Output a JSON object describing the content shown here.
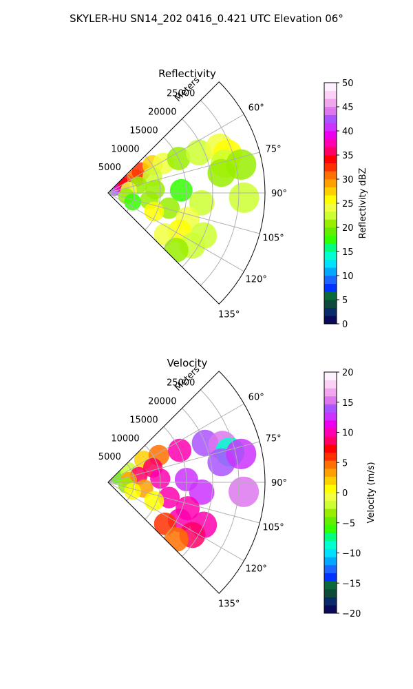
{
  "figure_title": "SKYLER-HU  SN14_202  0416_0.421 UTC Elevation 06°",
  "colors": {
    "ring_grid": "#b0b0b0",
    "frame": "#000000",
    "reflectivity_scale": [
      "#0a0a5a",
      "#0a2a6a",
      "#0d4a3a",
      "#0a6a3a",
      "#0033ff",
      "#1a66ff",
      "#00a8ff",
      "#00e0ff",
      "#00ffd0",
      "#00ff80",
      "#33ff00",
      "#66ee00",
      "#99ee00",
      "#ccff33",
      "#f0ff40",
      "#ffff00",
      "#ffd000",
      "#ffa000",
      "#ff7000",
      "#ff3000",
      "#ff0000",
      "#ff0066",
      "#ff00b0",
      "#ee00ee",
      "#cc33ff",
      "#aa55ff",
      "#dd77ee",
      "#f2a6ee",
      "#fad2f5",
      "#fff0ff"
    ],
    "velocity_scale": [
      "#0a0a5a",
      "#0a2a6a",
      "#0d4a3a",
      "#0a6a3a",
      "#0033ff",
      "#1a66ff",
      "#00a8ff",
      "#00e0ff",
      "#00ffd0",
      "#00ff80",
      "#33ff00",
      "#66ee00",
      "#99ee00",
      "#ccff33",
      "#f0ff40",
      "#ffff00",
      "#ffd000",
      "#ffa000",
      "#ff7000",
      "#ff3000",
      "#ff0000",
      "#ff0066",
      "#ff00b0",
      "#ee00ee",
      "#cc33ff",
      "#aa55ff",
      "#dd77ee",
      "#f2a6ee",
      "#fad2f5",
      "#fff0ff"
    ]
  },
  "chart_data": [
    {
      "type": "heatmap",
      "projection": "polar-sector",
      "title": "Reflectivity",
      "range_label": "Meters",
      "range_ticks": [
        5000,
        10000,
        15000,
        20000,
        25000
      ],
      "azimuth_range_deg": [
        45,
        135
      ],
      "azimuth_ticks": [
        "60°",
        "75°",
        "90°",
        "105°",
        "120°",
        "135°"
      ],
      "range_max_m": 30000,
      "colorbar": {
        "label": "Reflectivity dBZ",
        "range": [
          0,
          50
        ],
        "ticks": [
          "0",
          "5",
          "10",
          "15",
          "20",
          "25",
          "30",
          "35",
          "40",
          "45",
          "50"
        ]
      },
      "echo_cells": [
        {
          "az": 56,
          "r": 1500,
          "v": 42
        },
        {
          "az": 58,
          "r": 3000,
          "v": 38
        },
        {
          "az": 60,
          "r": 4000,
          "v": 34
        },
        {
          "az": 62,
          "r": 6000,
          "v": 30
        },
        {
          "az": 57,
          "r": 7500,
          "v": 32
        },
        {
          "az": 58,
          "r": 10000,
          "v": 28
        },
        {
          "az": 62,
          "r": 12000,
          "v": 24
        },
        {
          "az": 64,
          "r": 15000,
          "v": 20
        },
        {
          "az": 66,
          "r": 19000,
          "v": 22
        },
        {
          "az": 68,
          "r": 23000,
          "v": 24
        },
        {
          "az": 72,
          "r": 24000,
          "v": 26
        },
        {
          "az": 76,
          "r": 23000,
          "v": 22
        },
        {
          "az": 80,
          "r": 22000,
          "v": 20
        },
        {
          "az": 78,
          "r": 26000,
          "v": 20
        },
        {
          "az": 70,
          "r": 9000,
          "v": 22
        },
        {
          "az": 76,
          "r": 6000,
          "v": 20
        },
        {
          "az": 82,
          "r": 4000,
          "v": 24
        },
        {
          "az": 86,
          "r": 9000,
          "v": 20
        },
        {
          "az": 88,
          "r": 14000,
          "v": 18
        },
        {
          "az": 92,
          "r": 26000,
          "v": 22
        },
        {
          "az": 96,
          "r": 18000,
          "v": 22
        },
        {
          "az": 100,
          "r": 8000,
          "v": 20
        },
        {
          "az": 104,
          "r": 12000,
          "v": 20
        },
        {
          "az": 108,
          "r": 16000,
          "v": 24
        },
        {
          "az": 112,
          "r": 9500,
          "v": 26
        },
        {
          "az": 114,
          "r": 20000,
          "v": 22
        },
        {
          "az": 118,
          "r": 15500,
          "v": 26
        },
        {
          "az": 122,
          "r": 19000,
          "v": 22
        },
        {
          "az": 126,
          "r": 13500,
          "v": 24
        },
        {
          "az": 130,
          "r": 17000,
          "v": 20
        },
        {
          "az": 100,
          "r": 3500,
          "v": 20
        },
        {
          "az": 110,
          "r": 5000,
          "v": 18
        }
      ]
    },
    {
      "type": "heatmap",
      "projection": "polar-sector",
      "title": "Velocity",
      "range_label": "Meters",
      "range_ticks": [
        5000,
        10000,
        15000,
        20000,
        25000
      ],
      "azimuth_range_deg": [
        45,
        135
      ],
      "azimuth_ticks": [
        "60°",
        "75°",
        "90°",
        "105°",
        "120°",
        "135°"
      ],
      "range_max_m": 30000,
      "colorbar": {
        "label": "Velocity (m/s)",
        "range": [
          -20,
          20
        ],
        "ticks": [
          "−20",
          "−15",
          "−10",
          "−5",
          "0",
          "5",
          "10",
          "15",
          "20"
        ]
      },
      "echo_cells": [
        {
          "az": 56,
          "r": 2000,
          "v": -5
        },
        {
          "az": 60,
          "r": 4500,
          "v": -2
        },
        {
          "az": 58,
          "r": 8000,
          "v": 2
        },
        {
          "az": 62,
          "r": 11000,
          "v": 5
        },
        {
          "az": 66,
          "r": 15000,
          "v": 10
        },
        {
          "az": 68,
          "r": 20000,
          "v": 14
        },
        {
          "az": 72,
          "r": 23000,
          "v": 15
        },
        {
          "az": 76,
          "r": 24000,
          "v": -9
        },
        {
          "az": 80,
          "r": 22000,
          "v": 14
        },
        {
          "az": 78,
          "r": 26000,
          "v": 13
        },
        {
          "az": 72,
          "r": 9000,
          "v": 9
        },
        {
          "az": 78,
          "r": 6000,
          "v": 8
        },
        {
          "az": 84,
          "r": 4000,
          "v": 3
        },
        {
          "az": 86,
          "r": 10000,
          "v": 10
        },
        {
          "az": 88,
          "r": 15000,
          "v": 13
        },
        {
          "az": 94,
          "r": 26000,
          "v": 15
        },
        {
          "az": 96,
          "r": 18000,
          "v": 13
        },
        {
          "az": 100,
          "r": 7000,
          "v": 3
        },
        {
          "az": 104,
          "r": 12000,
          "v": 10
        },
        {
          "az": 108,
          "r": 16000,
          "v": 10
        },
        {
          "az": 112,
          "r": 9500,
          "v": 1
        },
        {
          "az": 114,
          "r": 20000,
          "v": 10
        },
        {
          "az": 118,
          "r": 15500,
          "v": 10
        },
        {
          "az": 122,
          "r": 19000,
          "v": 9
        },
        {
          "az": 126,
          "r": 13500,
          "v": 6
        },
        {
          "az": 130,
          "r": 17000,
          "v": 5
        },
        {
          "az": 100,
          "r": 3500,
          "v": -3
        },
        {
          "az": 110,
          "r": 5000,
          "v": 0
        }
      ]
    }
  ]
}
